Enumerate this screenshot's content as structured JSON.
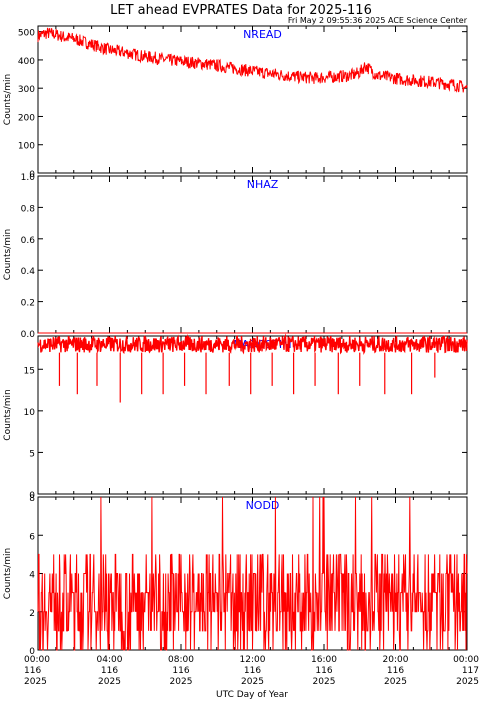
{
  "header": {
    "title": "LET ahead EVPRATES Data for 2025-116",
    "timestamp": "Fri May  2 09:55:36 2025 ACE Science Center"
  },
  "colors": {
    "data": "#ff0000",
    "panel_label": "#0000ff",
    "axis": "#000000",
    "background": "#ffffff"
  },
  "x_axis": {
    "label": "UTC Day of Year",
    "range_hours": [
      0,
      24
    ],
    "ticks": [
      {
        "hour": 0,
        "time": "00:00",
        "doy": "116",
        "year": "2025"
      },
      {
        "hour": 4,
        "time": "04:00",
        "doy": "116",
        "year": "2025"
      },
      {
        "hour": 8,
        "time": "08:00",
        "doy": "116",
        "year": "2025"
      },
      {
        "hour": 12,
        "time": "12:00",
        "doy": "116",
        "year": "2025"
      },
      {
        "hour": 16,
        "time": "16:00",
        "doy": "116",
        "year": "2025"
      },
      {
        "hour": 20,
        "time": "20:00",
        "doy": "116",
        "year": "2025"
      },
      {
        "hour": 24,
        "time": "00:00",
        "doy": "117",
        "year": "2025"
      }
    ]
  },
  "chart_data": [
    {
      "type": "line",
      "name": "NREAD",
      "ylabel": "Counts/min",
      "ylim": [
        0,
        520
      ],
      "yticks": [
        0,
        100,
        200,
        300,
        400,
        500
      ],
      "x": [
        0,
        0.5,
        1,
        1.5,
        2,
        2.5,
        3,
        3.5,
        4,
        4.5,
        5,
        5.5,
        6,
        6.5,
        7,
        7.5,
        8,
        8.5,
        9,
        9.5,
        10,
        10.5,
        11,
        11.5,
        12,
        12.5,
        13,
        13.5,
        14,
        14.5,
        15,
        15.5,
        16,
        16.5,
        17,
        17.5,
        18,
        18.3,
        18.6,
        19,
        19.5,
        20,
        20.5,
        21,
        21.5,
        22,
        22.5,
        23,
        23.5,
        24
      ],
      "y": [
        485,
        495,
        490,
        480,
        475,
        465,
        455,
        445,
        435,
        430,
        425,
        418,
        412,
        408,
        402,
        398,
        395,
        392,
        388,
        385,
        380,
        375,
        370,
        365,
        360,
        356,
        352,
        348,
        344,
        340,
        338,
        336,
        338,
        340,
        342,
        345,
        355,
        380,
        365,
        345,
        340,
        335,
        330,
        328,
        325,
        322,
        318,
        315,
        310,
        300
      ],
      "noise": 22
    },
    {
      "type": "line",
      "name": "NHAZ",
      "ylabel": "Counts/min",
      "ylim": [
        0,
        1
      ],
      "yticks": [
        0.0,
        0.2,
        0.4,
        0.6,
        0.8,
        1.0
      ],
      "x": [
        0,
        24
      ],
      "y": [
        0,
        0
      ],
      "noise": 0
    },
    {
      "type": "line",
      "name": "NADCSTIM",
      "ylabel": "Counts/min",
      "ylim": [
        0,
        19
      ],
      "yticks": [
        0,
        5,
        10,
        15
      ],
      "x": [
        0,
        24
      ],
      "y": [
        18,
        18
      ],
      "band_low": 17,
      "band_high": 19,
      "dips": [
        {
          "hour": 1.2,
          "value": 13
        },
        {
          "hour": 2.2,
          "value": 12
        },
        {
          "hour": 3.3,
          "value": 13
        },
        {
          "hour": 4.6,
          "value": 11
        },
        {
          "hour": 5.8,
          "value": 12
        },
        {
          "hour": 7.0,
          "value": 12
        },
        {
          "hour": 8.2,
          "value": 13
        },
        {
          "hour": 9.4,
          "value": 12
        },
        {
          "hour": 10.7,
          "value": 13
        },
        {
          "hour": 11.9,
          "value": 12
        },
        {
          "hour": 13.1,
          "value": 13
        },
        {
          "hour": 14.3,
          "value": 12
        },
        {
          "hour": 15.5,
          "value": 13
        },
        {
          "hour": 16.8,
          "value": 12
        },
        {
          "hour": 18.0,
          "value": 13
        },
        {
          "hour": 19.4,
          "value": 12
        },
        {
          "hour": 20.9,
          "value": 12
        },
        {
          "hour": 22.2,
          "value": 14
        }
      ]
    },
    {
      "type": "line",
      "name": "NODD",
      "ylabel": "Counts/min",
      "ylim": [
        0,
        8
      ],
      "yticks": [
        0,
        2,
        4,
        6,
        8
      ],
      "x": [
        0,
        24
      ],
      "y": [
        2.5,
        2.5
      ],
      "noise": 2.5,
      "max_value": 8
    }
  ]
}
